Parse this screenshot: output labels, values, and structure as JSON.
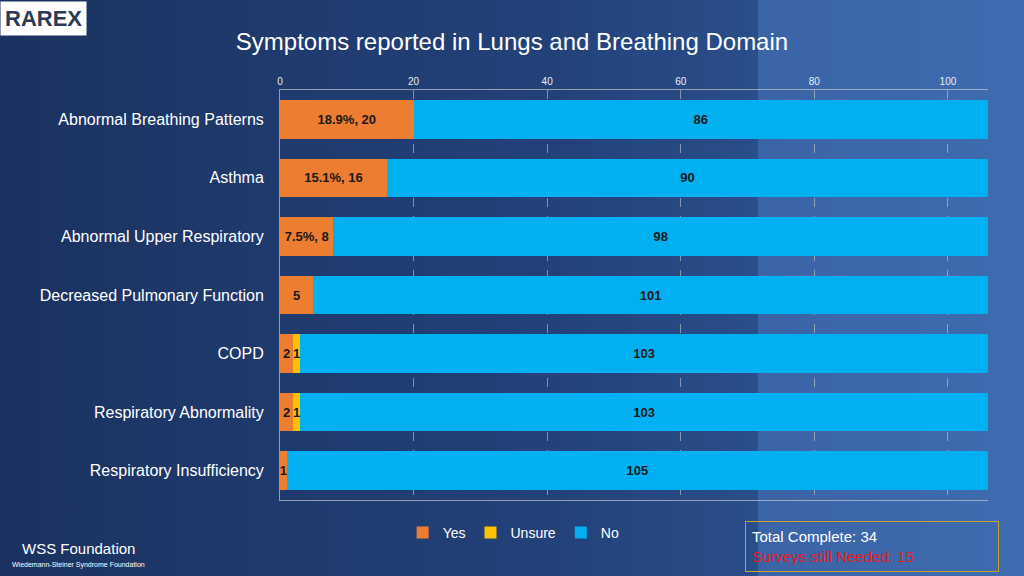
{
  "chart_data": {
    "type": "bar",
    "orientation": "horizontal",
    "stacked": true,
    "title": "Symptoms reported in Lungs and Breathing Domain",
    "categories": [
      "Abnormal Breathing Patterns",
      "Asthma",
      "Abnormal Upper Respiratory",
      "Decreased Pulmonary Function",
      "COPD",
      "Respiratory Abnormality",
      "Respiratory Insufficiency"
    ],
    "series": [
      {
        "name": "Yes",
        "color": "#ed7d31",
        "values": [
          20,
          16,
          8,
          5,
          2,
          2,
          1
        ],
        "value_labels": [
          "18.9%, 20",
          "15.1%, 16",
          "7.5%, 8",
          "5",
          "2",
          "2",
          "1"
        ]
      },
      {
        "name": "Unsure",
        "color": "#ffc000",
        "values": [
          null,
          null,
          null,
          null,
          1,
          1,
          null
        ]
      },
      {
        "name": "No",
        "color": "#00b0f0",
        "values": [
          86,
          90,
          98,
          101,
          103,
          103,
          105
        ]
      }
    ],
    "xlim": [
      0,
      106
    ],
    "xticks": [
      0,
      20,
      40,
      60,
      80,
      100
    ],
    "grid": true,
    "legend": "bottom",
    "data_labels": true,
    "annotations": [
      "Total Complete: 34",
      "Surveys still Needed: 15",
      "RAREX",
      "WSS Foundation",
      "Wiedemann-Steiner Syndrome Foundation"
    ]
  }
}
